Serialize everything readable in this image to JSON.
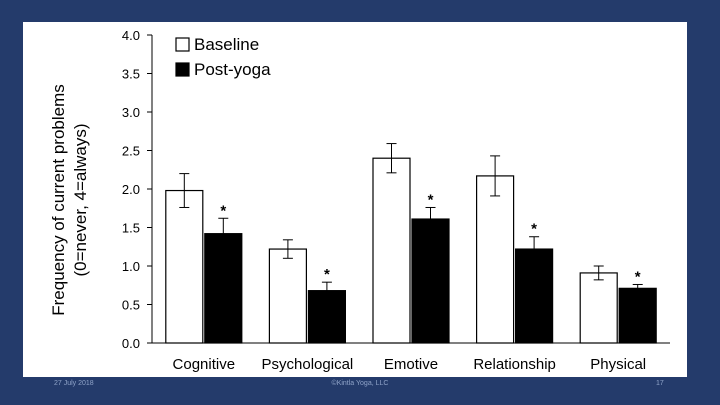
{
  "chart_data": {
    "type": "bar",
    "ylabel_lines": [
      "Frequency of current problems",
      "(0=never, 4=always)"
    ],
    "ylim": [
      0,
      4
    ],
    "yticks": [
      "0.0",
      "0.5",
      "1.0",
      "1.5",
      "2.0",
      "2.5",
      "3.0",
      "3.5",
      "4.0"
    ],
    "categories": [
      "Cognitive",
      "Psychological",
      "Emotive",
      "Relationship",
      "Physical"
    ],
    "legend_position": "top-left",
    "series": [
      {
        "name": "Baseline",
        "fill": "#ffffff",
        "values": [
          1.98,
          1.22,
          2.4,
          2.17,
          0.91
        ],
        "errors": [
          0.22,
          0.12,
          0.19,
          0.26,
          0.09
        ]
      },
      {
        "name": "Post-yoga",
        "fill": "#000000",
        "values": [
          1.42,
          0.68,
          1.61,
          1.22,
          0.71
        ],
        "errors": [
          0.2,
          0.11,
          0.15,
          0.16,
          0.05
        ]
      }
    ],
    "significance_marker": "*",
    "grid": false
  },
  "footer": {
    "date": "27 July 2018",
    "copyright": "©Kintla Yoga, LLC",
    "page": "17"
  },
  "colors": {
    "background": "#243b6b",
    "panel": "#ffffff"
  }
}
